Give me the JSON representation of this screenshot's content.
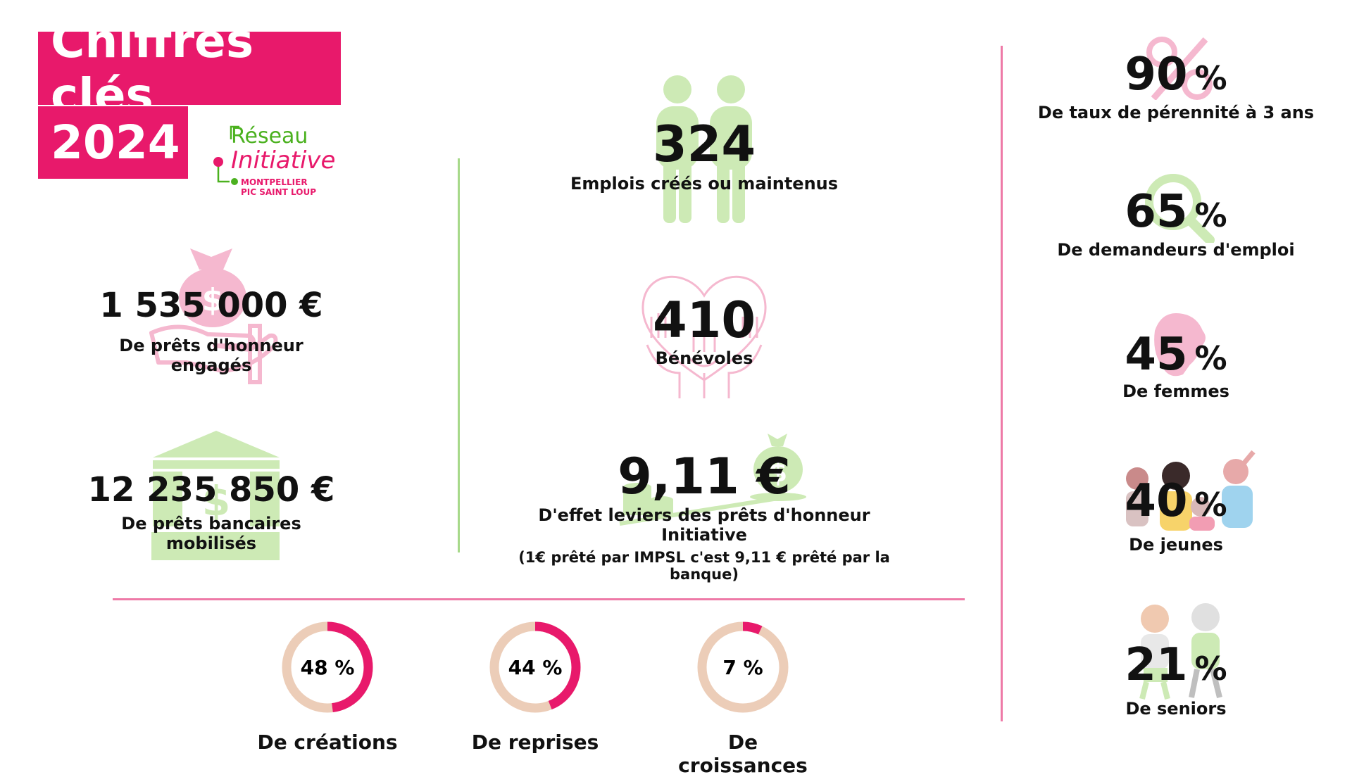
{
  "header": {
    "title": "Chiffres clés",
    "year": "2024",
    "logo": {
      "line1": "Réseau",
      "line2": "Initiative",
      "line3": "MONTPELLIER",
      "line4": "PIC SAINT LOUP"
    }
  },
  "left_stats": [
    {
      "value": "1 535 000 €",
      "label": "De prêts d'honneur engagés",
      "icon": "money-bag-hand-icon"
    },
    {
      "value": "12 235 850 €",
      "label": "De prêts bancaires mobilisés",
      "icon": "bank-icon"
    }
  ],
  "center_stats": [
    {
      "value": "324",
      "label": "Emplois créés ou maintenus",
      "icon": "people-icon"
    },
    {
      "value": "410",
      "label": "Bénévoles",
      "icon": "hands-heart-icon"
    },
    {
      "value": "9,11 €",
      "label": "D'effet leviers des prêts d'honneur Initiative",
      "note": "(1€ prêté par IMPSL c'est 9,11 € prêté par la banque)",
      "icon": "scale-money-icon"
    }
  ],
  "right_stats": [
    {
      "value": "90",
      "unit": "%",
      "label": "De taux de pérennité à 3 ans",
      "icon": "percent-icon"
    },
    {
      "value": "65",
      "unit": "%",
      "label": "De demandeurs d'emploi",
      "icon": "magnifier-icon"
    },
    {
      "value": "45",
      "unit": "%",
      "label": "De femmes",
      "icon": "woman-icon"
    },
    {
      "value": "40",
      "unit": "%",
      "label": "De jeunes",
      "icon": "young-people-icon"
    },
    {
      "value": "21",
      "unit": "%",
      "label": "De seniors",
      "icon": "seniors-icon"
    }
  ],
  "donuts": [
    {
      "value": 48,
      "text": "48 %",
      "label": "De créations"
    },
    {
      "value": 44,
      "text": "44 %",
      "label": "De reprises"
    },
    {
      "value": 7,
      "text": "7 %",
      "label": "De croissances"
    }
  ],
  "colors": {
    "pink": "#e8196b",
    "light_pink": "#f5b8cf",
    "green": "#4bb11f",
    "light_green": "#cdeab5",
    "beige": "#eccdb8"
  }
}
